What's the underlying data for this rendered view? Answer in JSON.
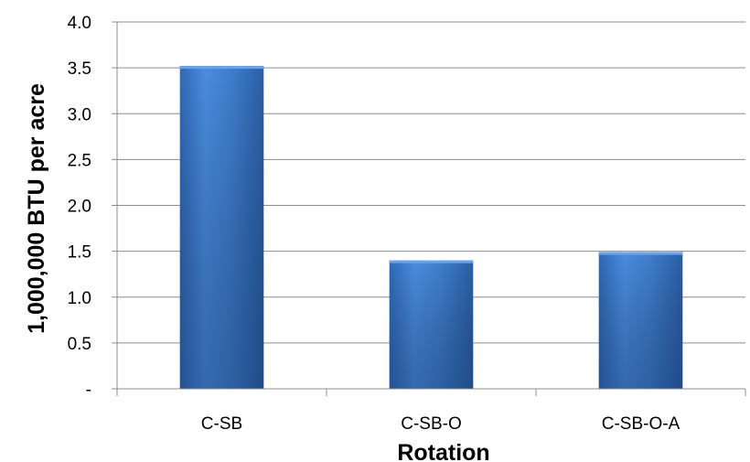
{
  "chart_data": {
    "type": "bar",
    "categories": [
      "C-SB",
      "C-SB-O",
      "C-SB-O-A"
    ],
    "values": [
      3.52,
      1.4,
      1.49
    ],
    "xlabel": "Rotation",
    "ylabel": "1,000,000 BTU per acre",
    "ylim": [
      0,
      4.0
    ],
    "yticks": [
      0,
      0.5,
      1.0,
      1.5,
      2.0,
      2.5,
      3.0,
      3.5,
      4.0
    ],
    "ytick_labels": [
      "-",
      "0.5",
      "1.0",
      "1.5",
      "2.0",
      "2.5",
      "3.0",
      "3.5",
      "4.0"
    ],
    "grid": true,
    "legend": "none",
    "bar_color": "#3f7fce"
  }
}
